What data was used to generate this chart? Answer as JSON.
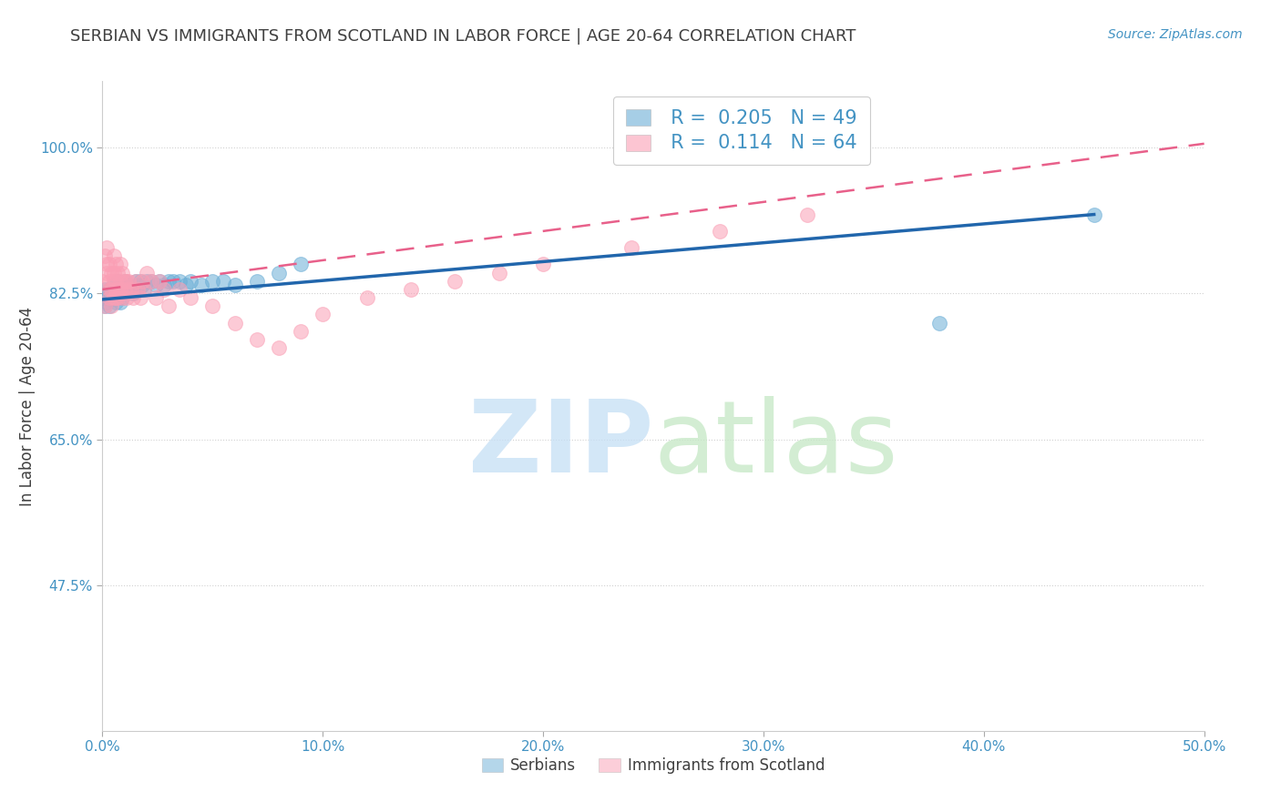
{
  "title": "SERBIAN VS IMMIGRANTS FROM SCOTLAND IN LABOR FORCE | AGE 20-64 CORRELATION CHART",
  "source": "Source: ZipAtlas.com",
  "ylabel": "In Labor Force | Age 20-64",
  "xlim": [
    0.0,
    0.5
  ],
  "ylim": [
    0.3,
    1.08
  ],
  "yticks": [
    0.475,
    0.65,
    0.825,
    1.0
  ],
  "ytick_labels": [
    "47.5%",
    "65.0%",
    "82.5%",
    "100.0%"
  ],
  "xticks": [
    0.0,
    0.1,
    0.2,
    0.3,
    0.4,
    0.5
  ],
  "xtick_labels": [
    "0.0%",
    "10.0%",
    "20.0%",
    "30.0%",
    "40.0%",
    "50.0%"
  ],
  "serbian_R": 0.205,
  "serbian_N": 49,
  "scottish_R": 0.114,
  "scottish_N": 64,
  "blue_color": "#6baed6",
  "pink_color": "#fa9fb5",
  "blue_line_color": "#2166ac",
  "pink_line_color": "#e8608a",
  "title_color": "#404040",
  "axis_color": "#4393c3",
  "legend_text_color": "#4393c3",
  "serbian_x": [
    0.0,
    0.001,
    0.001,
    0.002,
    0.002,
    0.003,
    0.003,
    0.003,
    0.004,
    0.005,
    0.005,
    0.006,
    0.006,
    0.007,
    0.007,
    0.008,
    0.008,
    0.009,
    0.009,
    0.01,
    0.01,
    0.011,
    0.012,
    0.013,
    0.014,
    0.015,
    0.016,
    0.017,
    0.018,
    0.019,
    0.02,
    0.022,
    0.024,
    0.026,
    0.028,
    0.03,
    0.032,
    0.035,
    0.038,
    0.04,
    0.045,
    0.05,
    0.055,
    0.06,
    0.07,
    0.08,
    0.09,
    0.38,
    0.45
  ],
  "serbian_y": [
    0.82,
    0.83,
    0.81,
    0.825,
    0.815,
    0.83,
    0.82,
    0.81,
    0.825,
    0.82,
    0.835,
    0.83,
    0.815,
    0.825,
    0.84,
    0.83,
    0.815,
    0.835,
    0.82,
    0.83,
    0.84,
    0.83,
    0.835,
    0.83,
    0.825,
    0.84,
    0.835,
    0.84,
    0.835,
    0.83,
    0.84,
    0.84,
    0.835,
    0.84,
    0.835,
    0.84,
    0.84,
    0.84,
    0.835,
    0.84,
    0.835,
    0.84,
    0.84,
    0.835,
    0.84,
    0.85,
    0.86,
    0.79,
    0.92
  ],
  "scottish_x": [
    0.0,
    0.001,
    0.001,
    0.002,
    0.002,
    0.002,
    0.003,
    0.003,
    0.003,
    0.003,
    0.004,
    0.004,
    0.004,
    0.005,
    0.005,
    0.005,
    0.005,
    0.006,
    0.006,
    0.006,
    0.006,
    0.007,
    0.007,
    0.007,
    0.008,
    0.008,
    0.008,
    0.009,
    0.009,
    0.01,
    0.01,
    0.011,
    0.011,
    0.012,
    0.012,
    0.013,
    0.014,
    0.015,
    0.016,
    0.017,
    0.018,
    0.019,
    0.02,
    0.022,
    0.024,
    0.026,
    0.028,
    0.03,
    0.035,
    0.04,
    0.05,
    0.06,
    0.07,
    0.08,
    0.09,
    0.1,
    0.12,
    0.14,
    0.16,
    0.18,
    0.2,
    0.24,
    0.28,
    0.32
  ],
  "scottish_y": [
    0.84,
    0.87,
    0.81,
    0.88,
    0.85,
    0.86,
    0.83,
    0.82,
    0.86,
    0.84,
    0.85,
    0.83,
    0.81,
    0.85,
    0.82,
    0.84,
    0.87,
    0.83,
    0.86,
    0.82,
    0.84,
    0.85,
    0.83,
    0.82,
    0.84,
    0.86,
    0.83,
    0.85,
    0.82,
    0.84,
    0.83,
    0.84,
    0.82,
    0.83,
    0.84,
    0.83,
    0.82,
    0.84,
    0.83,
    0.82,
    0.84,
    0.83,
    0.85,
    0.84,
    0.82,
    0.84,
    0.83,
    0.81,
    0.83,
    0.82,
    0.81,
    0.79,
    0.77,
    0.76,
    0.78,
    0.8,
    0.82,
    0.83,
    0.84,
    0.85,
    0.86,
    0.88,
    0.9,
    0.92
  ],
  "serbian_line_x0": 0.0,
  "serbian_line_y0": 0.818,
  "serbian_line_x1": 0.45,
  "serbian_line_y1": 0.92,
  "scottish_line_x0": 0.0,
  "scottish_line_y0": 0.83,
  "scottish_line_x1": 0.5,
  "scottish_line_y1": 1.005
}
